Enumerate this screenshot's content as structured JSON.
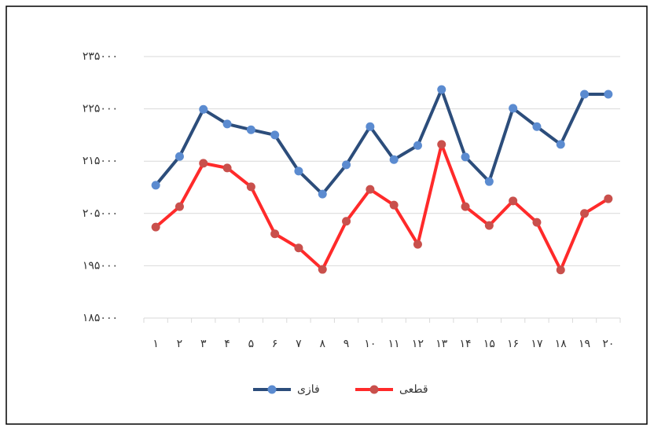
{
  "chart_data": {
    "type": "line",
    "categories": [
      "۱",
      "۲",
      "۳",
      "۴",
      "۵",
      "۶",
      "۷",
      "۸",
      "۹",
      "۱۰",
      "۱۱",
      "۱۲",
      "۱۳",
      "۱۴",
      "۱۵",
      "۱۶",
      "۱۷",
      "۱۸",
      "۱۹",
      "۲۰"
    ],
    "series": [
      {
        "name": "فازی",
        "color": "#2c4d7b",
        "marker_color": "#5b8bd0",
        "values": [
          210400,
          215900,
          224900,
          222100,
          221000,
          220000,
          213100,
          208700,
          214300,
          221600,
          215300,
          218000,
          228700,
          215800,
          211100,
          225100,
          221600,
          218200,
          227800,
          227800
        ]
      },
      {
        "name": "قطعی",
        "color": "#ff2a2a",
        "marker_color": "#c9504c",
        "values": [
          202400,
          206300,
          214600,
          213700,
          210100,
          201100,
          198400,
          194300,
          203500,
          209600,
          206600,
          199100,
          218200,
          206300,
          202700,
          207400,
          203300,
          194200,
          205000,
          207800
        ]
      }
    ],
    "ylim": [
      185000,
      235000
    ],
    "yticks": [
      {
        "value": 185000,
        "label": "۱۸۵۰۰۰"
      },
      {
        "value": 195000,
        "label": "۱۹۵۰۰۰"
      },
      {
        "value": 205000,
        "label": "۲۰۵۰۰۰"
      },
      {
        "value": 215000,
        "label": "۲۱۵۰۰۰"
      },
      {
        "value": 225000,
        "label": "۲۲۵۰۰۰"
      },
      {
        "value": 235000,
        "label": "۲۳۵۰۰۰"
      }
    ],
    "grid": true,
    "legend": "bottom"
  }
}
